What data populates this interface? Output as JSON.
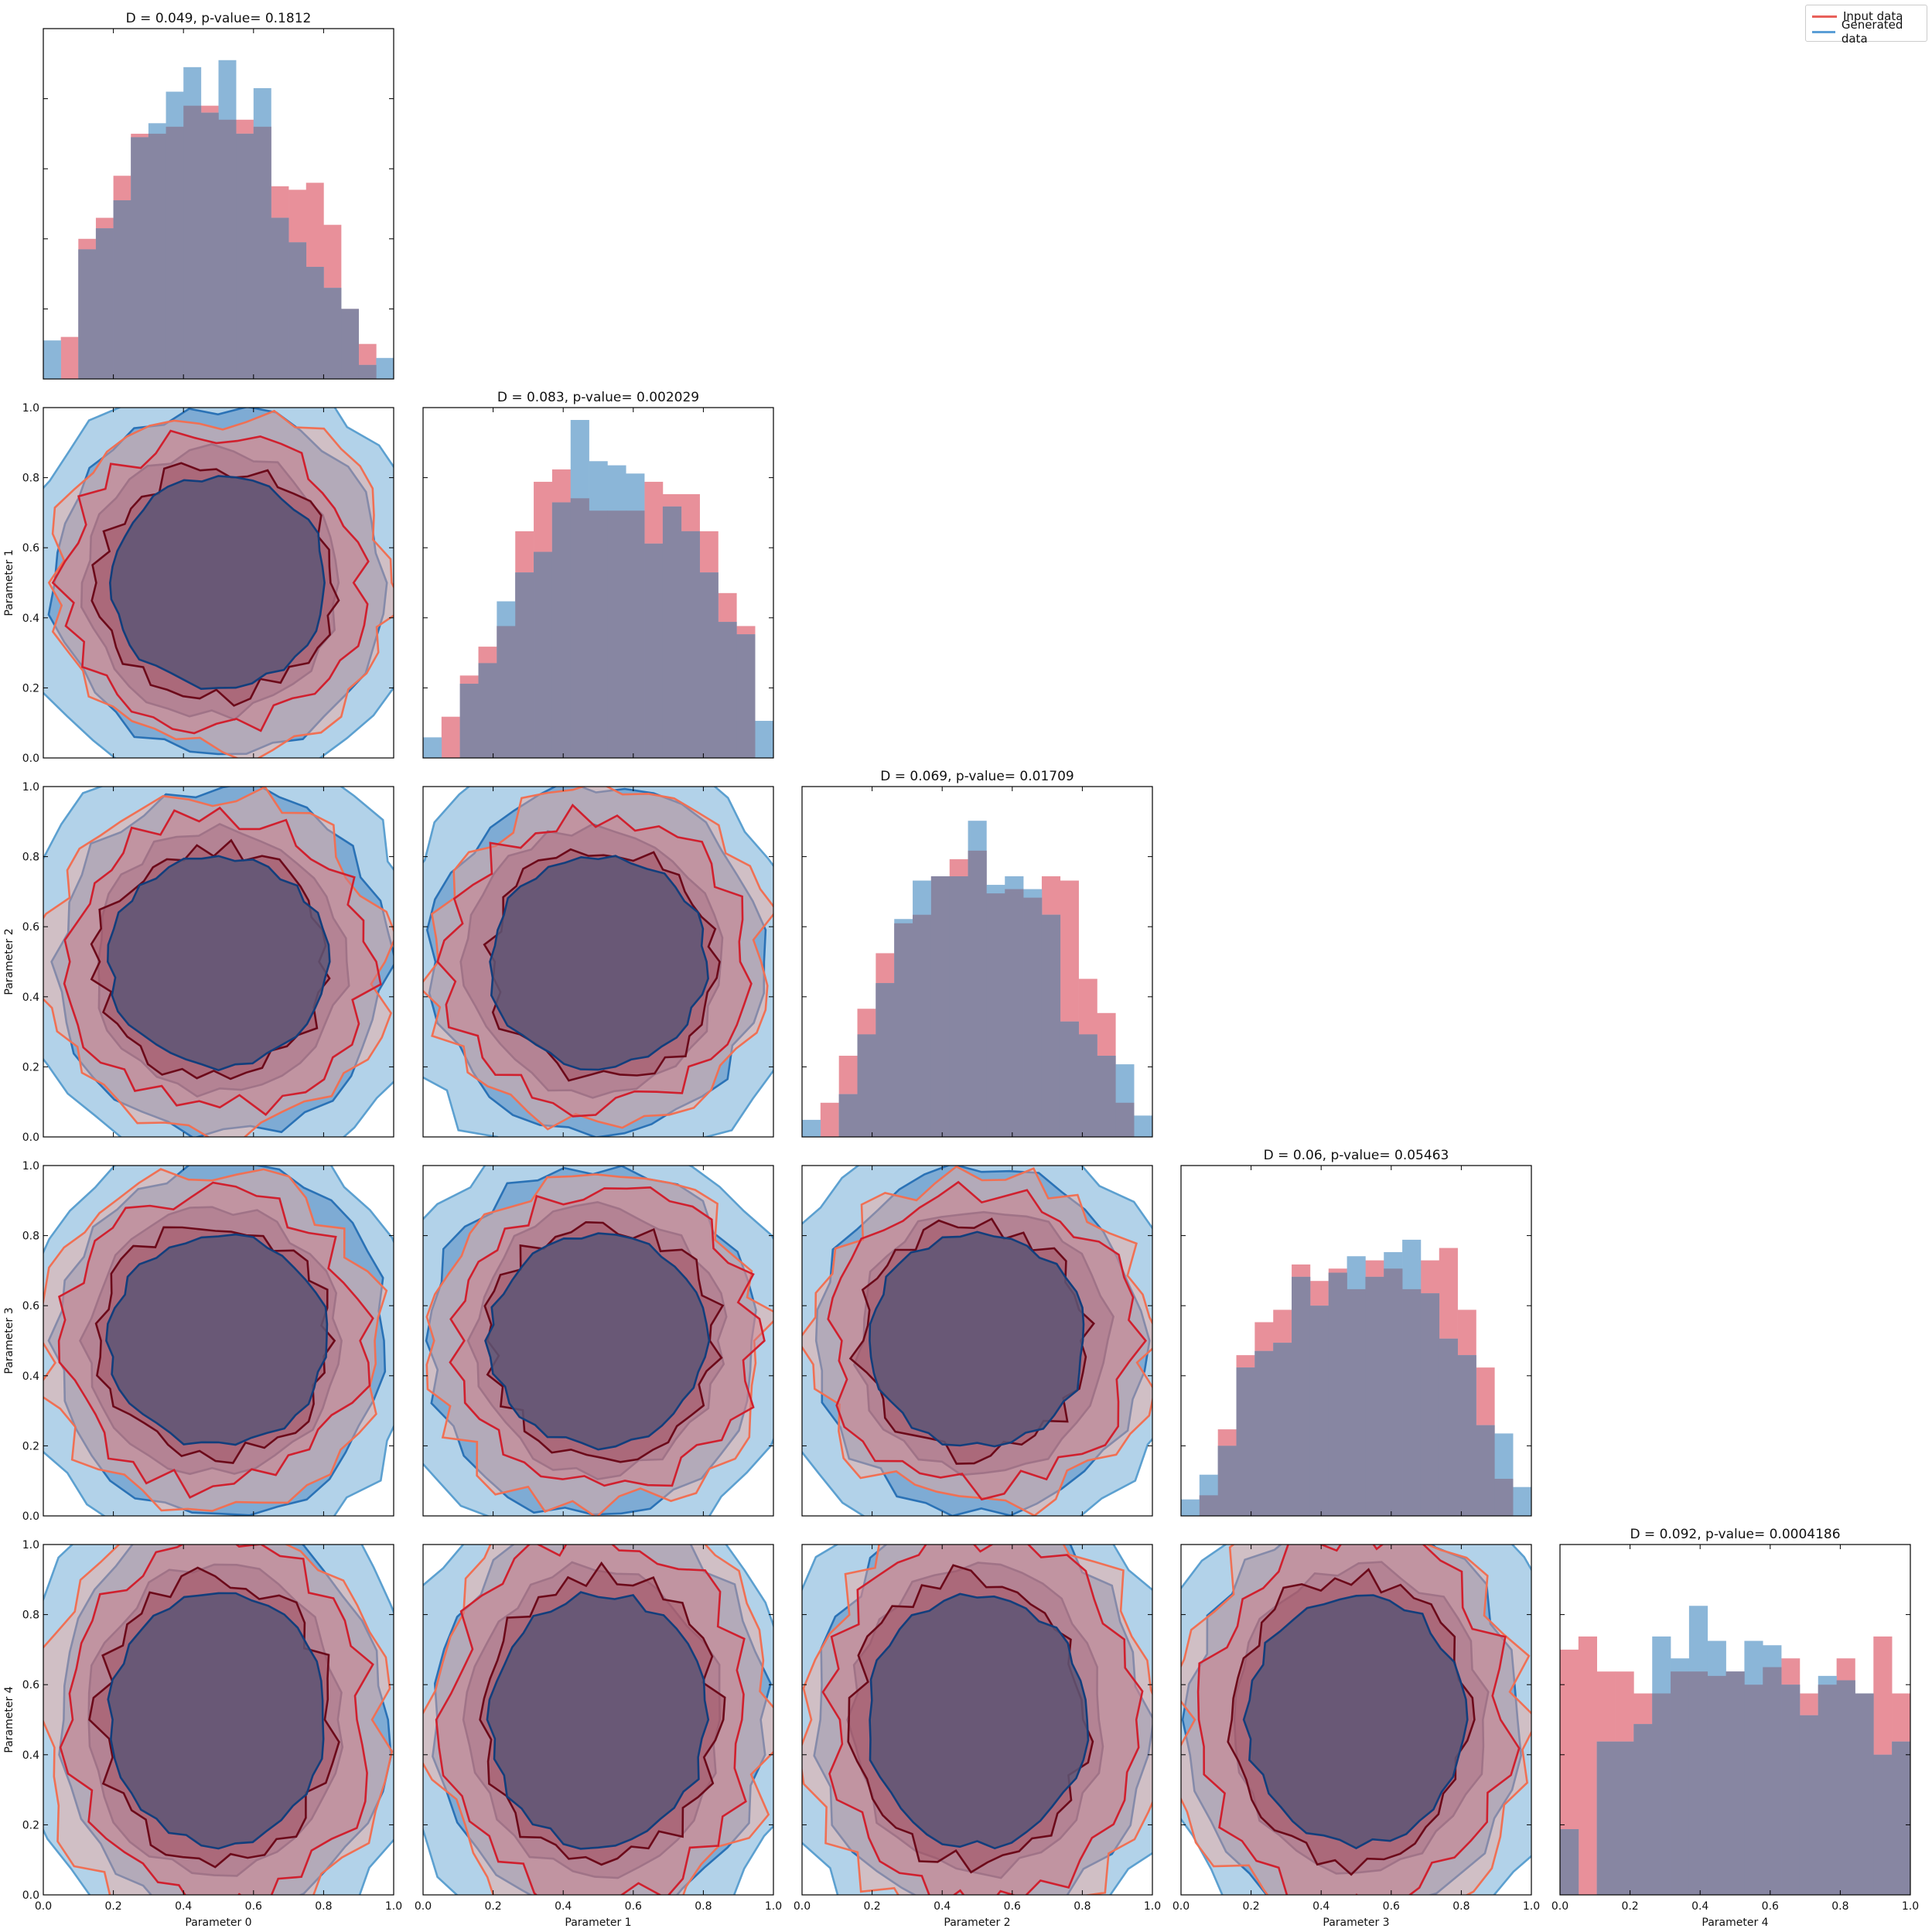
{
  "legend": {
    "entries": [
      {
        "label": "Input data",
        "color": "#e8605a"
      },
      {
        "label": "Generated data",
        "color": "#5b9fd6"
      }
    ]
  },
  "colors": {
    "input_hist": "#e8909a",
    "generated_hist": "#8bb6d8",
    "overlap_hist": "#8786a2",
    "input_fill": [
      "#f4a89a",
      "#d27a86",
      "#a0495a"
    ],
    "input_lines": [
      "#f07054",
      "#d0202e",
      "#6c0a1a"
    ],
    "generated_fill": [
      "#aed0e8",
      "#7ba9d3",
      "#5271a4"
    ],
    "generated_lines": [
      "#5ca0d0",
      "#2a72b6",
      "#123e7c"
    ],
    "core_overlap": "#5d5675"
  },
  "chart_data": {
    "type": "corner",
    "parameters": [
      "Parameter 0",
      "Parameter 1",
      "Parameter 2",
      "Parameter 3",
      "Parameter 4"
    ],
    "axis_range": [
      0,
      1
    ],
    "xticks": [
      "0.0",
      "0.2",
      "0.4",
      "0.6",
      "0.8",
      "1.0"
    ],
    "yticks": [
      "0.0",
      "0.2",
      "0.4",
      "0.6",
      "0.8",
      "1.0"
    ],
    "grid": false,
    "legend_position": "top-right",
    "diagonal": [
      {
        "title": "D = 0.049, p-value= 0.1812",
        "bin_edges": [
          0.0,
          0.05,
          0.1,
          0.15,
          0.2,
          0.25,
          0.3,
          0.35,
          0.4,
          0.45,
          0.5,
          0.55,
          0.6,
          0.65,
          0.7,
          0.75,
          0.8,
          0.85,
          0.9,
          0.95,
          1.0
        ],
        "input_counts": [
          0,
          12,
          40,
          46,
          58,
          70,
          70,
          72,
          78,
          78,
          74,
          74,
          72,
          55,
          54,
          56,
          44,
          20,
          10,
          0
        ],
        "generated_counts": [
          11,
          0,
          37,
          43,
          51,
          69,
          73,
          82,
          89,
          76,
          91,
          70,
          83,
          46,
          39,
          32,
          26,
          20,
          4,
          6
        ],
        "ymax": 100
      },
      {
        "title": "D = 0.083, p-value= 0.002029",
        "bin_edges": [
          0.0,
          0.0526,
          0.1053,
          0.1579,
          0.2105,
          0.2632,
          0.3158,
          0.3684,
          0.4211,
          0.4737,
          0.5263,
          0.5789,
          0.6316,
          0.6842,
          0.7368,
          0.7895,
          0.8421,
          0.8947,
          0.9474,
          1.0
        ],
        "input_counts": [
          0,
          10,
          20,
          27,
          32,
          55,
          67,
          70,
          63,
          60,
          60,
          60,
          67,
          64,
          64,
          55,
          40,
          32,
          0
        ],
        "generated_counts": [
          5,
          0,
          18,
          23,
          38,
          45,
          50,
          62,
          82,
          72,
          71,
          69,
          52,
          61,
          55,
          45,
          33,
          30,
          9
        ],
        "ymax": 85
      },
      {
        "title": "D = 0.069, p-value= 0.01709",
        "bin_edges": [
          0.0,
          0.0526,
          0.1053,
          0.1579,
          0.2105,
          0.2632,
          0.3158,
          0.3684,
          0.4211,
          0.4737,
          0.5263,
          0.5789,
          0.6316,
          0.6842,
          0.7368,
          0.7895,
          0.8421,
          0.8947,
          0.9474,
          1.0
        ],
        "input_counts": [
          0,
          8,
          19,
          30,
          43,
          50,
          52,
          61,
          65,
          67,
          57,
          58,
          56,
          61,
          60,
          37,
          29,
          8,
          0
        ],
        "generated_counts": [
          4,
          0,
          10,
          24,
          36,
          51,
          60,
          61,
          61,
          74,
          59,
          61,
          58,
          52,
          27,
          24,
          19,
          17,
          5
        ],
        "ymax": 82
      },
      {
        "title": "D = 0.06, p-value= 0.05463",
        "bin_edges": [
          0.0,
          0.0526,
          0.1053,
          0.1579,
          0.2105,
          0.2632,
          0.3158,
          0.3684,
          0.4211,
          0.4737,
          0.5263,
          0.5789,
          0.6316,
          0.6842,
          0.7368,
          0.7895,
          0.8421,
          0.8947,
          0.9474,
          1.0
        ],
        "input_counts": [
          0,
          5,
          21,
          39,
          47,
          50,
          61,
          57,
          60,
          55,
          62,
          60,
          55,
          62,
          65,
          50,
          36,
          9,
          0
        ],
        "generated_counts": [
          4,
          10,
          17,
          36,
          40,
          42,
          58,
          51,
          59,
          63,
          58,
          64,
          67,
          54,
          43,
          39,
          22,
          20,
          7
        ],
        "ymax": 85
      },
      {
        "title": "D = 0.092, p-value= 0.0004186",
        "bin_edges": [
          0.0,
          0.0526,
          0.1053,
          0.1579,
          0.2105,
          0.2632,
          0.3158,
          0.3684,
          0.4211,
          0.4737,
          0.5263,
          0.5789,
          0.6316,
          0.6842,
          0.7368,
          0.7895,
          0.8421,
          0.8947,
          0.9474,
          1.0
        ],
        "input_counts": [
          56,
          59,
          51,
          51,
          46,
          46,
          51,
          51,
          50,
          51,
          48,
          52,
          54,
          46,
          48,
          54,
          46,
          59,
          46
        ],
        "generated_counts": [
          15,
          0,
          35,
          35,
          39,
          59,
          54,
          66,
          58,
          51,
          58,
          57,
          48,
          41,
          50,
          49,
          46,
          32,
          35
        ],
        "ymax": 80
      }
    ]
  }
}
